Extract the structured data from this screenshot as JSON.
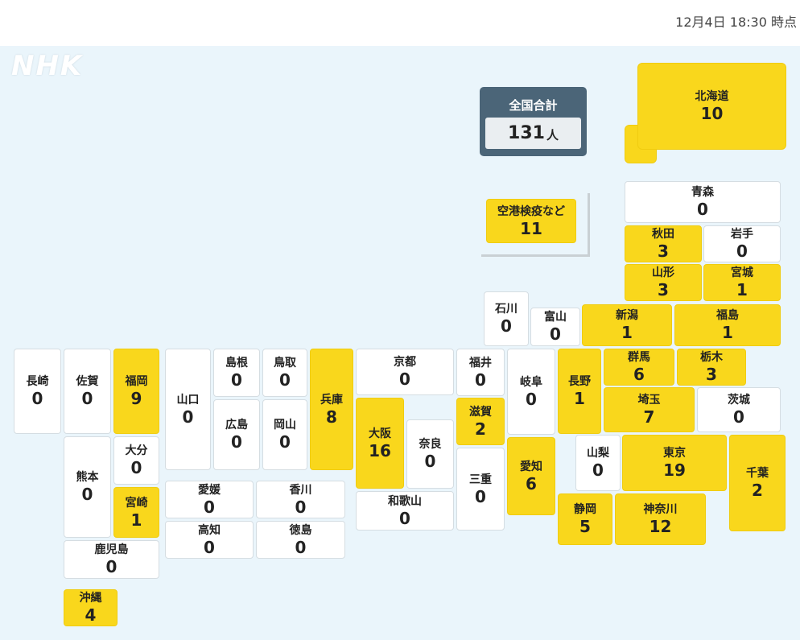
{
  "timestamp": "12月4日 18:30 時点",
  "logo": "NHK",
  "total": {
    "label": "全国合計",
    "value": "131",
    "unit": "人"
  },
  "colors": {
    "highlight": "#f9d71c",
    "zero": "#ffffff",
    "background": "#eaf5fb",
    "total_box": "#4b6578"
  },
  "prefectures": [
    {
      "id": "hokkaido",
      "name": "北海道",
      "count": "10"
    },
    {
      "id": "airport",
      "name": "空港検疫など",
      "count": "11"
    },
    {
      "id": "aomori",
      "name": "青森",
      "count": "0"
    },
    {
      "id": "akita",
      "name": "秋田",
      "count": "3"
    },
    {
      "id": "iwate",
      "name": "岩手",
      "count": "0"
    },
    {
      "id": "yamagata",
      "name": "山形",
      "count": "3"
    },
    {
      "id": "miyagi",
      "name": "宮城",
      "count": "1"
    },
    {
      "id": "ishikawa",
      "name": "石川",
      "count": "0"
    },
    {
      "id": "toyama",
      "name": "富山",
      "count": "0"
    },
    {
      "id": "niigata",
      "name": "新潟",
      "count": "1"
    },
    {
      "id": "fukushima",
      "name": "福島",
      "count": "1"
    },
    {
      "id": "nagasaki",
      "name": "長崎",
      "count": "0"
    },
    {
      "id": "saga",
      "name": "佐賀",
      "count": "0"
    },
    {
      "id": "fukuoka",
      "name": "福岡",
      "count": "9"
    },
    {
      "id": "yamaguchi",
      "name": "山口",
      "count": "0"
    },
    {
      "id": "shimane",
      "name": "島根",
      "count": "0"
    },
    {
      "id": "tottori",
      "name": "鳥取",
      "count": "0"
    },
    {
      "id": "hiroshima",
      "name": "広島",
      "count": "0"
    },
    {
      "id": "okayama",
      "name": "岡山",
      "count": "0"
    },
    {
      "id": "hyogo",
      "name": "兵庫",
      "count": "8"
    },
    {
      "id": "kyoto",
      "name": "京都",
      "count": "0"
    },
    {
      "id": "fukui",
      "name": "福井",
      "count": "0"
    },
    {
      "id": "gifu",
      "name": "岐阜",
      "count": "0"
    },
    {
      "id": "nagano",
      "name": "長野",
      "count": "1"
    },
    {
      "id": "gunma",
      "name": "群馬",
      "count": "6"
    },
    {
      "id": "tochigi",
      "name": "栃木",
      "count": "3"
    },
    {
      "id": "saitama",
      "name": "埼玉",
      "count": "7"
    },
    {
      "id": "ibaraki",
      "name": "茨城",
      "count": "0"
    },
    {
      "id": "osaka",
      "name": "大阪",
      "count": "16"
    },
    {
      "id": "nara",
      "name": "奈良",
      "count": "0"
    },
    {
      "id": "shiga",
      "name": "滋賀",
      "count": "2"
    },
    {
      "id": "mie",
      "name": "三重",
      "count": "0"
    },
    {
      "id": "aichi",
      "name": "愛知",
      "count": "6"
    },
    {
      "id": "yamanashi",
      "name": "山梨",
      "count": "0"
    },
    {
      "id": "tokyo",
      "name": "東京",
      "count": "19"
    },
    {
      "id": "chiba",
      "name": "千葉",
      "count": "2"
    },
    {
      "id": "shizuoka",
      "name": "静岡",
      "count": "5"
    },
    {
      "id": "kanagawa",
      "name": "神奈川",
      "count": "12"
    },
    {
      "id": "wakayama",
      "name": "和歌山",
      "count": "0"
    },
    {
      "id": "kumamoto",
      "name": "熊本",
      "count": "0"
    },
    {
      "id": "oita",
      "name": "大分",
      "count": "0"
    },
    {
      "id": "miyazaki",
      "name": "宮崎",
      "count": "1"
    },
    {
      "id": "kagoshima",
      "name": "鹿児島",
      "count": "0"
    },
    {
      "id": "okinawa",
      "name": "沖縄",
      "count": "4"
    },
    {
      "id": "ehime",
      "name": "愛媛",
      "count": "0"
    },
    {
      "id": "kagawa",
      "name": "香川",
      "count": "0"
    },
    {
      "id": "kochi",
      "name": "高知",
      "count": "0"
    },
    {
      "id": "tokushima",
      "name": "徳島",
      "count": "0"
    }
  ]
}
